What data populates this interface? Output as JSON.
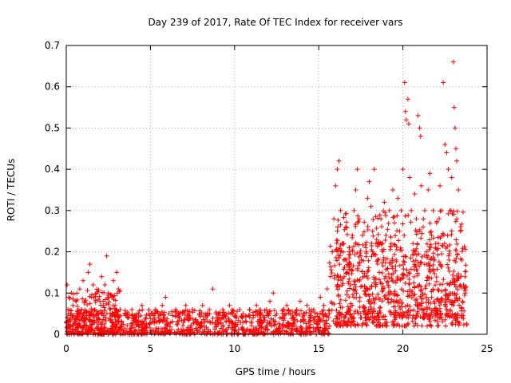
{
  "chart_data": {
    "type": "scatter",
    "title": "Day 239 of 2017, Rate Of TEC Index for receiver vars",
    "xlabel": "GPS time / hours",
    "ylabel": "ROTI / TECUs",
    "xlim": [
      0,
      25
    ],
    "ylim": [
      0,
      0.7
    ],
    "xticks": [
      0,
      5,
      10,
      15,
      20,
      25
    ],
    "xtick_labels": [
      "0",
      "5",
      "10",
      "15",
      "20",
      "25"
    ],
    "yticks": [
      0,
      0.1,
      0.2,
      0.3,
      0.4,
      0.5,
      0.6,
      0.7
    ],
    "ytick_labels": [
      "0",
      "0.1",
      "0.2",
      "0.3",
      "0.4",
      "0.5",
      "0.6",
      "0.7"
    ],
    "grid": true,
    "marker": "+",
    "color": "#ff0000",
    "series": [
      {
        "name": "ROTI",
        "points": [
          [
            0.0,
            0.03
          ],
          [
            0.05,
            0.12
          ],
          [
            0.1,
            0.06
          ],
          [
            0.15,
            0.09
          ],
          [
            0.2,
            0.02
          ],
          [
            0.25,
            0.05
          ],
          [
            0.3,
            0.1
          ],
          [
            0.35,
            0.04
          ],
          [
            0.4,
            0.07
          ],
          [
            0.5,
            0.03
          ],
          [
            0.6,
            0.08
          ],
          [
            0.7,
            0.05
          ],
          [
            0.8,
            0.11
          ],
          [
            0.9,
            0.06
          ],
          [
            1.0,
            0.13
          ],
          [
            1.1,
            0.08
          ],
          [
            1.2,
            0.04
          ],
          [
            1.3,
            0.15
          ],
          [
            1.4,
            0.17
          ],
          [
            1.5,
            0.09
          ],
          [
            1.6,
            0.12
          ],
          [
            1.7,
            0.06
          ],
          [
            1.8,
            0.1
          ],
          [
            1.9,
            0.04
          ],
          [
            2.0,
            0.08
          ],
          [
            2.1,
            0.14
          ],
          [
            2.2,
            0.07
          ],
          [
            2.3,
            0.12
          ],
          [
            2.4,
            0.19
          ],
          [
            2.5,
            0.1
          ],
          [
            2.6,
            0.05
          ],
          [
            2.7,
            0.09
          ],
          [
            2.8,
            0.13
          ],
          [
            2.9,
            0.07
          ],
          [
            3.0,
            0.15
          ],
          [
            3.1,
            0.11
          ],
          [
            3.2,
            0.06
          ],
          [
            3.3,
            0.03
          ],
          [
            3.5,
            0.05
          ],
          [
            3.7,
            0.04
          ],
          [
            3.9,
            0.06
          ],
          [
            4.1,
            0.03
          ],
          [
            4.3,
            0.05
          ],
          [
            4.5,
            0.07
          ],
          [
            4.7,
            0.04
          ],
          [
            4.9,
            0.05
          ],
          [
            5.1,
            0.03
          ],
          [
            5.3,
            0.06
          ],
          [
            5.5,
            0.04
          ],
          [
            5.7,
            0.07
          ],
          [
            5.9,
            0.09
          ],
          [
            6.1,
            0.05
          ],
          [
            6.3,
            0.03
          ],
          [
            6.5,
            0.06
          ],
          [
            6.7,
            0.04
          ],
          [
            6.9,
            0.05
          ],
          [
            7.1,
            0.07
          ],
          [
            7.3,
            0.04
          ],
          [
            7.5,
            0.06
          ],
          [
            7.7,
            0.03
          ],
          [
            7.9,
            0.05
          ],
          [
            8.1,
            0.07
          ],
          [
            8.3,
            0.04
          ],
          [
            8.5,
            0.06
          ],
          [
            8.7,
            0.11
          ],
          [
            8.9,
            0.05
          ],
          [
            9.1,
            0.04
          ],
          [
            9.3,
            0.06
          ],
          [
            9.5,
            0.03
          ],
          [
            9.7,
            0.07
          ],
          [
            9.9,
            0.05
          ],
          [
            10.1,
            0.04
          ],
          [
            10.3,
            0.06
          ],
          [
            10.5,
            0.05
          ],
          [
            10.7,
            0.03
          ],
          [
            10.9,
            0.06
          ],
          [
            11.1,
            0.04
          ],
          [
            11.3,
            0.07
          ],
          [
            11.5,
            0.05
          ],
          [
            11.7,
            0.03
          ],
          [
            11.9,
            0.06
          ],
          [
            12.1,
            0.08
          ],
          [
            12.3,
            0.1
          ],
          [
            12.5,
            0.05
          ],
          [
            12.7,
            0.04
          ],
          [
            12.9,
            0.06
          ],
          [
            13.1,
            0.07
          ],
          [
            13.3,
            0.05
          ],
          [
            13.5,
            0.04
          ],
          [
            13.7,
            0.06
          ],
          [
            13.9,
            0.08
          ],
          [
            14.1,
            0.05
          ],
          [
            14.3,
            0.07
          ],
          [
            14.5,
            0.04
          ],
          [
            14.7,
            0.06
          ],
          [
            14.9,
            0.05
          ],
          [
            15.1,
            0.09
          ],
          [
            15.3,
            0.07
          ],
          [
            15.5,
            0.11
          ],
          [
            15.7,
            0.14
          ],
          [
            15.8,
            0.2
          ],
          [
            15.9,
            0.28
          ],
          [
            16.0,
            0.36
          ],
          [
            16.1,
            0.4
          ],
          [
            16.2,
            0.42
          ],
          [
            16.3,
            0.3
          ],
          [
            16.4,
            0.22
          ],
          [
            16.5,
            0.18
          ],
          [
            16.6,
            0.26
          ],
          [
            16.7,
            0.15
          ],
          [
            16.8,
            0.2
          ],
          [
            16.9,
            0.12
          ],
          [
            17.0,
            0.24
          ],
          [
            17.1,
            0.3
          ],
          [
            17.2,
            0.35
          ],
          [
            17.3,
            0.4
          ],
          [
            17.4,
            0.28
          ],
          [
            17.5,
            0.19
          ],
          [
            17.6,
            0.24
          ],
          [
            17.7,
            0.14
          ],
          [
            17.8,
            0.21
          ],
          [
            17.9,
            0.33
          ],
          [
            18.0,
            0.37
          ],
          [
            18.1,
            0.31
          ],
          [
            18.2,
            0.25
          ],
          [
            18.3,
            0.4
          ],
          [
            18.4,
            0.22
          ],
          [
            18.5,
            0.18
          ],
          [
            18.6,
            0.15
          ],
          [
            18.7,
            0.28
          ],
          [
            18.8,
            0.2
          ],
          [
            18.9,
            0.32
          ],
          [
            19.0,
            0.24
          ],
          [
            19.1,
            0.16
          ],
          [
            19.2,
            0.3
          ],
          [
            19.3,
            0.22
          ],
          [
            19.4,
            0.35
          ],
          [
            19.5,
            0.27
          ],
          [
            19.6,
            0.18
          ],
          [
            19.7,
            0.33
          ],
          [
            19.8,
            0.25
          ],
          [
            19.9,
            0.3
          ],
          [
            20.0,
            0.4
          ],
          [
            20.1,
            0.61
          ],
          [
            20.15,
            0.54
          ],
          [
            20.2,
            0.52
          ],
          [
            20.3,
            0.57
          ],
          [
            20.35,
            0.51
          ],
          [
            20.4,
            0.38
          ],
          [
            20.5,
            0.3
          ],
          [
            20.6,
            0.22
          ],
          [
            20.7,
            0.34
          ],
          [
            20.8,
            0.28
          ],
          [
            20.9,
            0.53
          ],
          [
            21.0,
            0.5
          ],
          [
            21.05,
            0.48
          ],
          [
            21.1,
            0.36
          ],
          [
            21.2,
            0.26
          ],
          [
            21.3,
            0.3
          ],
          [
            21.4,
            0.2
          ],
          [
            21.5,
            0.35
          ],
          [
            21.6,
            0.39
          ],
          [
            21.7,
            0.24
          ],
          [
            21.8,
            0.3
          ],
          [
            21.9,
            0.18
          ],
          [
            22.0,
            0.27
          ],
          [
            22.1,
            0.22
          ],
          [
            22.2,
            0.36
          ],
          [
            22.3,
            0.3
          ],
          [
            22.4,
            0.61
          ],
          [
            22.5,
            0.46
          ],
          [
            22.6,
            0.44
          ],
          [
            22.7,
            0.4
          ],
          [
            22.8,
            0.3
          ],
          [
            22.9,
            0.38
          ],
          [
            23.0,
            0.66
          ],
          [
            23.05,
            0.55
          ],
          [
            23.1,
            0.5
          ],
          [
            23.15,
            0.45
          ],
          [
            23.2,
            0.42
          ],
          [
            23.3,
            0.35
          ],
          [
            23.4,
            0.25
          ],
          [
            23.5,
            0.18
          ],
          [
            23.6,
            0.12
          ],
          [
            23.7,
            0.1
          ]
        ]
      }
    ],
    "density_bands": [
      {
        "x": [
          0,
          15.6
        ],
        "ylow": 0.0,
        "yhigh": 0.06
      },
      {
        "x": [
          0.2,
          3.2
        ],
        "ylow": 0.0,
        "yhigh": 0.11
      },
      {
        "x": [
          15.6,
          23.8
        ],
        "ylow": 0.02,
        "yhigh": 0.22
      },
      {
        "x": [
          16.0,
          23.6
        ],
        "ylow": 0.04,
        "yhigh": 0.3
      }
    ]
  }
}
